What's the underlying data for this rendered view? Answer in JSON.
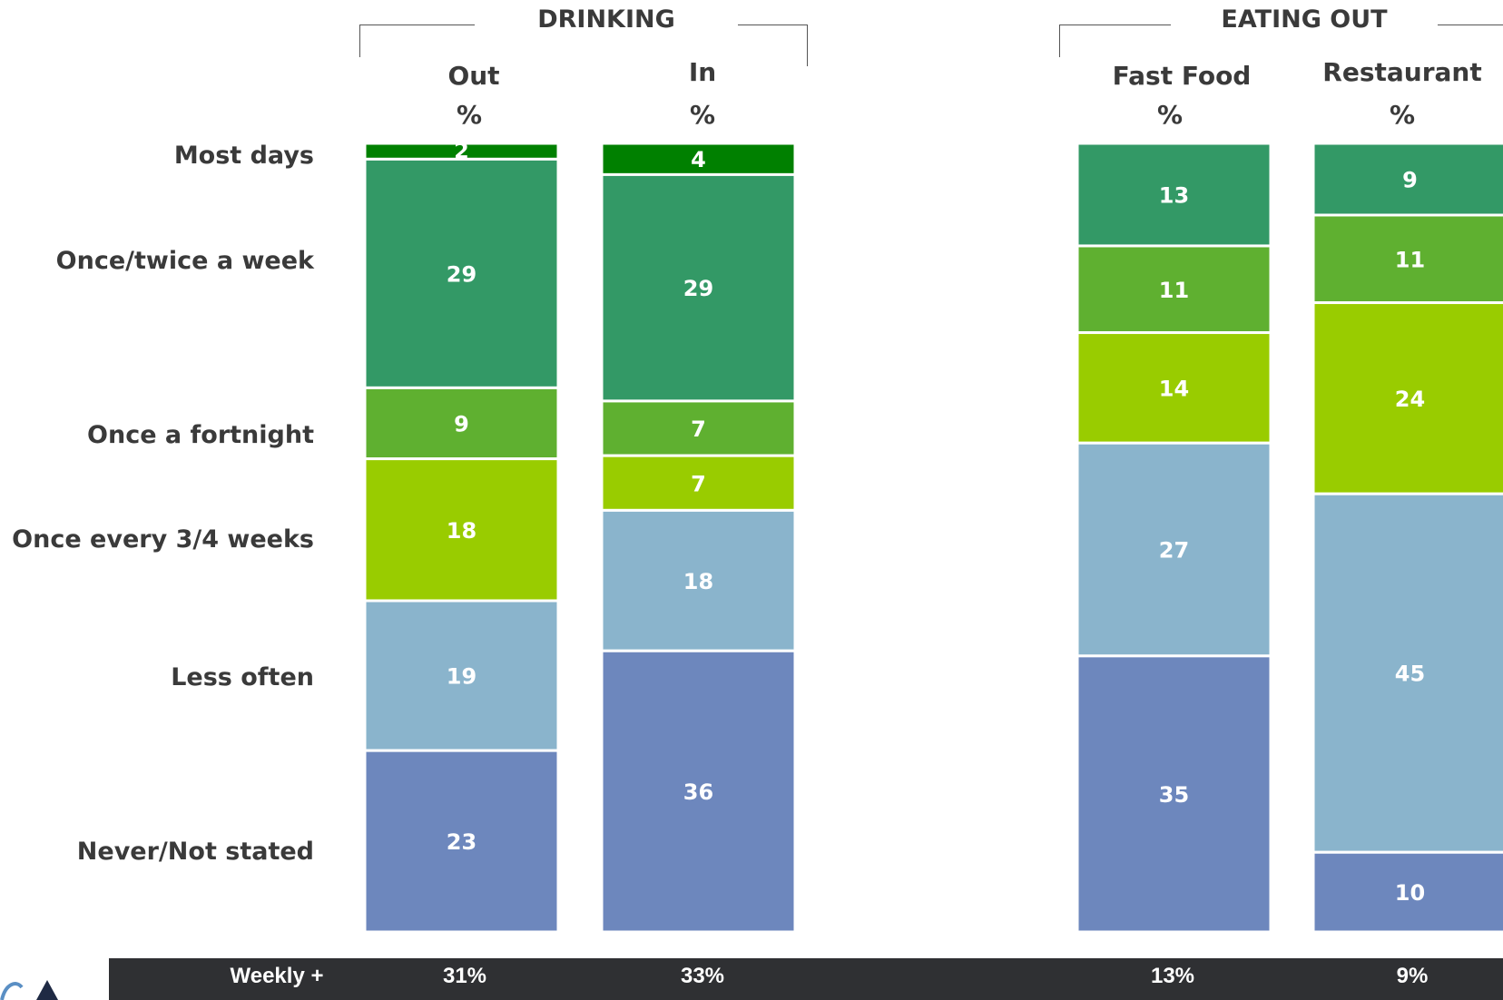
{
  "groups": [
    {
      "title": "DRINKING"
    },
    {
      "title": "EATING OUT"
    }
  ],
  "columns": [
    {
      "name": "Out",
      "unit": "%"
    },
    {
      "name": "In",
      "unit": "%"
    },
    {
      "name": "Fast Food",
      "unit": "%"
    },
    {
      "name": "Restaurant",
      "unit": "%"
    }
  ],
  "row_labels": [
    "Most days",
    "Once/twice a week",
    "Once a fortnight",
    "Once every 3/4 weeks",
    "Less often",
    "Never/Not stated"
  ],
  "footer": {
    "label": "Weekly +",
    "values": [
      "31%",
      "33%",
      "13%",
      "9%"
    ]
  },
  "chart_data": {
    "type": "bar",
    "stacked": true,
    "categories": [
      "Out",
      "In",
      "Fast Food",
      "Restaurant"
    ],
    "series": [
      {
        "name": "Most days",
        "values": [
          2,
          4,
          0,
          0
        ],
        "labels": [
          "2",
          "4",
          "Ø",
          "Ø"
        ],
        "color": "#008000"
      },
      {
        "name": "Once/twice a week",
        "values": [
          29,
          29,
          13,
          9
        ],
        "labels": [
          "29",
          "29",
          "13",
          "9"
        ],
        "color": "#339966"
      },
      {
        "name": "Once a fortnight",
        "values": [
          9,
          7,
          11,
          11
        ],
        "labels": [
          "9",
          "7",
          "11",
          "11"
        ],
        "color": "#5fb030"
      },
      {
        "name": "Once every 3/4 weeks",
        "values": [
          18,
          7,
          14,
          24
        ],
        "labels": [
          "18",
          "7",
          "14",
          "24"
        ],
        "color": "#99cc00"
      },
      {
        "name": "Less often",
        "values": [
          19,
          18,
          27,
          45
        ],
        "labels": [
          "19",
          "18",
          "27",
          "45"
        ],
        "color": "#8ab4cc"
      },
      {
        "name": "Never/Not stated",
        "values": [
          23,
          36,
          35,
          10
        ],
        "labels": [
          "23",
          "36",
          "35",
          "10"
        ],
        "color": "#6d87bd"
      }
    ],
    "ylim": [
      0,
      100
    ],
    "legend": "none"
  }
}
